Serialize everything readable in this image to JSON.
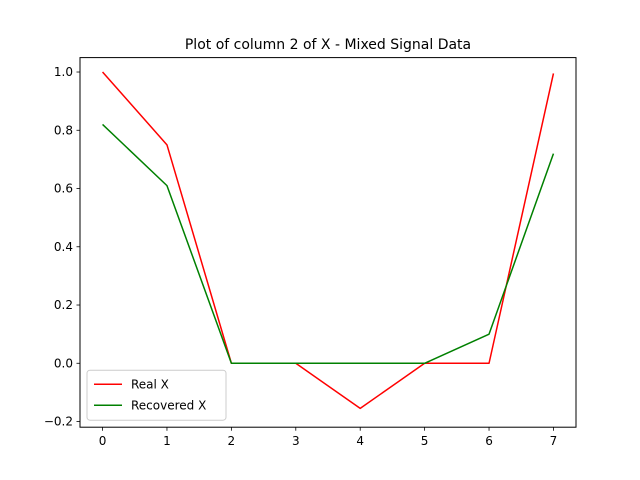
{
  "chart_data": {
    "type": "line",
    "title": "Plot of column 2 of X - Mixed Signal Data",
    "xlabel": "",
    "ylabel": "",
    "x": [
      0,
      1,
      2,
      3,
      4,
      5,
      6,
      7
    ],
    "xlim": [
      -0.35,
      7.35
    ],
    "ylim": [
      -0.2195,
      1.0495
    ],
    "xticks": [
      0,
      1,
      2,
      3,
      4,
      5,
      6,
      7
    ],
    "yticks": [
      -0.2,
      0.0,
      0.2,
      0.4,
      0.6,
      0.8,
      1.0
    ],
    "ytick_labels": [
      "−0.2",
      "0.0",
      "0.2",
      "0.4",
      "0.6",
      "0.8",
      "1.0"
    ],
    "grid": false,
    "legend": "lower-left",
    "series": [
      {
        "name": "Real X",
        "color": "#ff0000",
        "values": [
          1.0,
          0.75,
          0.0,
          0.0,
          -0.155,
          0.0,
          0.0,
          0.995
        ]
      },
      {
        "name": "Recovered X",
        "color": "#008000",
        "values": [
          0.82,
          0.61,
          0.0,
          0.0,
          0.0,
          0.0,
          0.1,
          0.72
        ]
      }
    ]
  }
}
